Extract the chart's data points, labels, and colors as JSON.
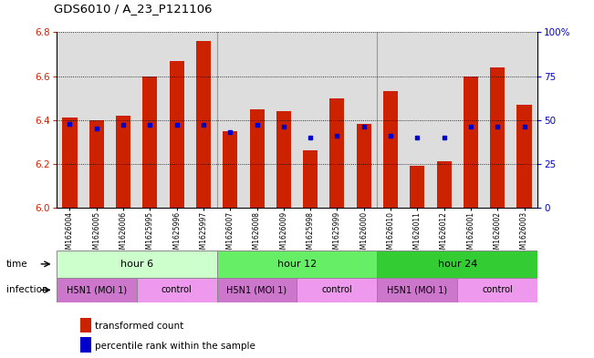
{
  "title": "GDS6010 / A_23_P121106",
  "samples": [
    "GSM1626004",
    "GSM1626005",
    "GSM1626006",
    "GSM1625995",
    "GSM1625996",
    "GSM1625997",
    "GSM1626007",
    "GSM1626008",
    "GSM1626009",
    "GSM1625998",
    "GSM1625999",
    "GSM1626000",
    "GSM1626010",
    "GSM1626011",
    "GSM1626012",
    "GSM1626001",
    "GSM1626002",
    "GSM1626003"
  ],
  "bar_values": [
    6.41,
    6.4,
    6.42,
    6.6,
    6.67,
    6.76,
    6.35,
    6.45,
    6.44,
    6.26,
    6.5,
    6.38,
    6.53,
    6.19,
    6.21,
    6.6,
    6.64,
    6.47
  ],
  "dot_values": [
    48,
    45,
    47,
    47,
    47,
    47,
    43,
    47,
    46,
    40,
    41,
    46,
    41,
    40,
    40,
    46,
    46,
    46
  ],
  "ylim_left": [
    6.0,
    6.8
  ],
  "ylim_right": [
    0,
    100
  ],
  "yticks_left": [
    6.0,
    6.2,
    6.4,
    6.6,
    6.8
  ],
  "yticks_right": [
    0,
    25,
    50,
    75,
    100
  ],
  "ytick_labels_right": [
    "0",
    "25",
    "50",
    "75",
    "100%"
  ],
  "bar_color": "#cc2200",
  "dot_color": "#0000cc",
  "bar_bottom": 6.0,
  "time_groups": [
    {
      "label": "hour 6",
      "start": 0,
      "end": 6,
      "color": "#ccffcc"
    },
    {
      "label": "hour 12",
      "start": 6,
      "end": 12,
      "color": "#66ee66"
    },
    {
      "label": "hour 24",
      "start": 12,
      "end": 18,
      "color": "#33cc33"
    }
  ],
  "infect_groups": [
    {
      "label": "H5N1 (MOI 1)",
      "start": 0,
      "end": 3,
      "color": "#cc77cc"
    },
    {
      "label": "control",
      "start": 3,
      "end": 6,
      "color": "#ee99ee"
    },
    {
      "label": "H5N1 (MOI 1)",
      "start": 6,
      "end": 9,
      "color": "#cc77cc"
    },
    {
      "label": "control",
      "start": 9,
      "end": 12,
      "color": "#ee99ee"
    },
    {
      "label": "H5N1 (MOI 1)",
      "start": 12,
      "end": 15,
      "color": "#cc77cc"
    },
    {
      "label": "control",
      "start": 15,
      "end": 18,
      "color": "#ee99ee"
    }
  ],
  "legend_items": [
    {
      "label": "transformed count",
      "color": "#cc2200"
    },
    {
      "label": "percentile rank within the sample",
      "color": "#0000cc"
    }
  ],
  "bg_color": "#dddddd"
}
